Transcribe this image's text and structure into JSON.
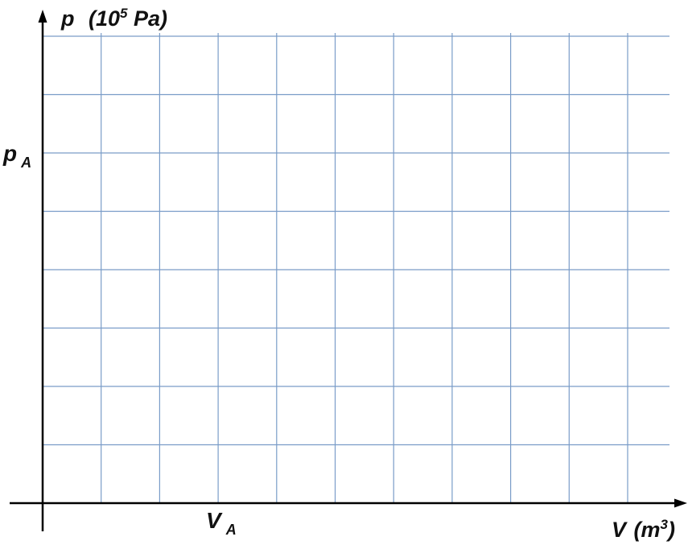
{
  "chart_data": {
    "type": "line",
    "title": "",
    "ylabel": {
      "symbol": "p",
      "unit_prefix": "(10",
      "unit_exponent": "5",
      "unit_suffix": " Pa)"
    },
    "xlabel": {
      "symbol": "V",
      "unit_prefix": "(m",
      "unit_exponent": "3",
      "unit_suffix": ")"
    },
    "y_marker": {
      "symbol": "p",
      "subscript": "A",
      "grid_index": 6
    },
    "x_marker": {
      "symbol": "V",
      "subscript": "A",
      "grid_index": 3
    },
    "grid": true,
    "x_divisions": 11,
    "y_divisions": 8,
    "series": []
  },
  "colors": {
    "grid": "#7a9cc8",
    "axis": "#000000",
    "text": "#111111"
  }
}
